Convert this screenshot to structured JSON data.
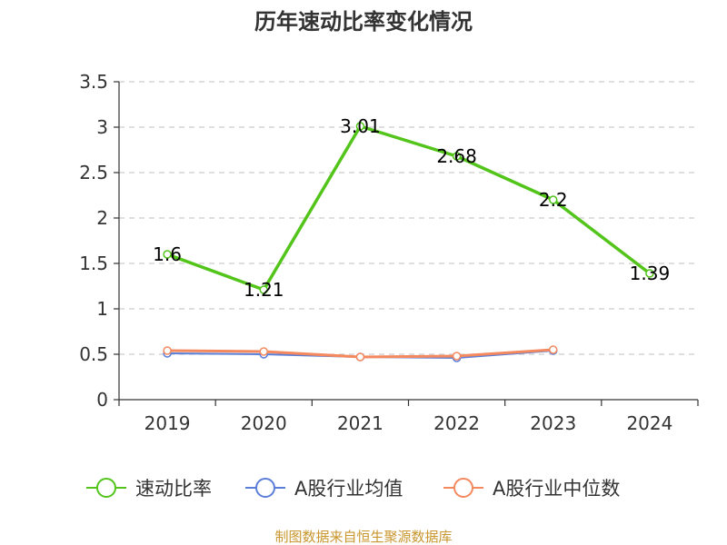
{
  "source_note": "制图数据来自恒生聚源数据库",
  "chart_data": {
    "type": "line",
    "title": "历年速动比率变化情况",
    "categories": [
      "2019",
      "2020",
      "2021",
      "2022",
      "2023",
      "2024"
    ],
    "ylim": [
      0,
      3.5
    ],
    "yticks": [
      "0",
      "0.5",
      "1",
      "1.5",
      "2",
      "2.5",
      "3",
      "3.5"
    ],
    "grid": true,
    "legend_position": "bottom",
    "series": [
      {
        "name": "速动比率",
        "color": "#52c41a",
        "values": [
          1.6,
          1.21,
          3.01,
          2.68,
          2.2,
          1.39
        ],
        "labels": [
          "1.6",
          "1.21",
          "3.01",
          "2.68",
          "2.2",
          "1.39"
        ]
      },
      {
        "name": "A股行业均值",
        "color": "#5b7fd8",
        "values": [
          0.51,
          0.5,
          0.47,
          0.46,
          0.54,
          null
        ]
      },
      {
        "name": "A股行业中位数",
        "color": "#f4895f",
        "values": [
          0.54,
          0.53,
          0.47,
          0.48,
          0.55,
          null
        ]
      }
    ]
  }
}
